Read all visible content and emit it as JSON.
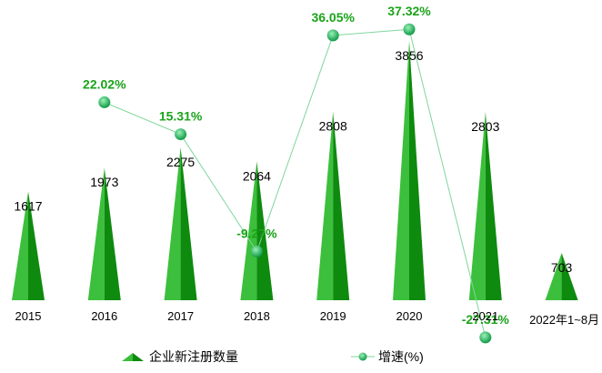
{
  "chart_data": {
    "type": "bar",
    "categories": [
      "2015",
      "2016",
      "2017",
      "2018",
      "2019",
      "2020",
      "2021",
      "2022年1~8月"
    ],
    "series": [
      {
        "name": "企业新注册数量",
        "type": "bar",
        "values": [
          1617,
          1973,
          2275,
          2064,
          2808,
          3856,
          2803,
          703
        ],
        "labels": [
          "1617",
          "1973",
          "2275",
          "2064",
          "2808",
          "3856",
          "2803",
          "703"
        ]
      },
      {
        "name": "增速(%)",
        "type": "line",
        "values": [
          null,
          22.02,
          15.31,
          -9.27,
          36.05,
          37.32,
          -27.31,
          null
        ],
        "labels": [
          "",
          "22.02%",
          "15.31%",
          "-9.27%",
          "36.05%",
          "37.32%",
          "-27.31%",
          ""
        ]
      }
    ],
    "bar_ylim": [
      0,
      4500
    ],
    "line_ylim": [
      -70,
      45
    ],
    "legend_position": "bottom",
    "grid": false,
    "colors": {
      "bar_light": "#3cbf3c",
      "bar_dark": "#0e8a0e",
      "line": "#7fd69a",
      "marker": "#1db35a",
      "line_label": "#1aa31a",
      "bar_label": "#000000"
    }
  }
}
